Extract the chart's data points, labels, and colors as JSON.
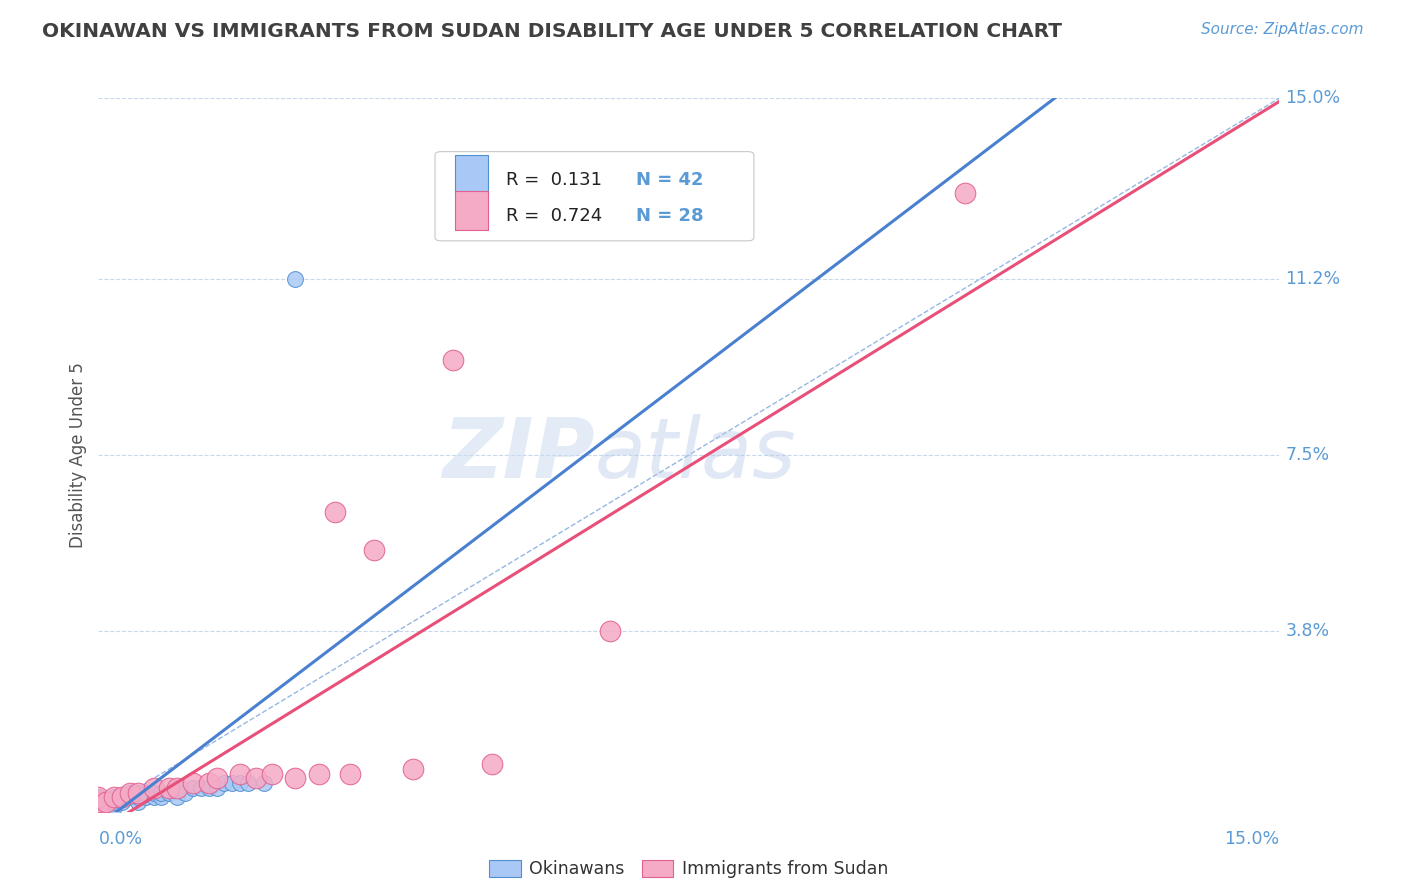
{
  "title": "OKINAWAN VS IMMIGRANTS FROM SUDAN DISABILITY AGE UNDER 5 CORRELATION CHART",
  "source": "Source: ZipAtlas.com",
  "ylabel": "Disability Age Under 5",
  "xmin": 0.0,
  "xmax": 0.15,
  "ymin": 0.0,
  "ymax": 0.15,
  "ytick_vals": [
    0.038,
    0.075,
    0.112,
    0.15
  ],
  "ytick_labels": [
    "3.8%",
    "7.5%",
    "11.2%",
    "15.0%"
  ],
  "legend_r1": "R =  0.131",
  "legend_n1": "N = 42",
  "legend_r2": "R =  0.724",
  "legend_n2": "N = 28",
  "color_okinawan_fill": "#aac8f5",
  "color_okinawan_edge": "#5090d0",
  "color_sudan_fill": "#f5aac5",
  "color_sudan_edge": "#e06090",
  "color_line_okinawan": "#4a80d0",
  "color_line_sudan": "#e8507a",
  "color_diag": "#8ab0e0",
  "color_title": "#404040",
  "color_axis_labels": "#5b9bd5",
  "color_grid": "#c8d8ec",
  "background_color": "#ffffff",
  "okinawan_x": [
    0.0,
    0.0,
    0.0,
    0.0,
    0.0,
    0.0,
    0.0,
    0.0,
    0.0,
    0.0,
    0.001,
    0.001,
    0.002,
    0.002,
    0.002,
    0.003,
    0.003,
    0.004,
    0.004,
    0.005,
    0.005,
    0.005,
    0.006,
    0.006,
    0.007,
    0.007,
    0.008,
    0.008,
    0.009,
    0.01,
    0.01,
    0.011,
    0.012,
    0.013,
    0.014,
    0.015,
    0.016,
    0.017,
    0.018,
    0.019,
    0.021,
    0.025
  ],
  "okinawan_y": [
    0.0,
    0.0,
    0.0,
    0.0,
    0.001,
    0.001,
    0.002,
    0.002,
    0.003,
    0.003,
    0.001,
    0.002,
    0.001,
    0.002,
    0.003,
    0.002,
    0.003,
    0.003,
    0.004,
    0.002,
    0.003,
    0.004,
    0.003,
    0.004,
    0.003,
    0.004,
    0.003,
    0.004,
    0.004,
    0.003,
    0.005,
    0.004,
    0.005,
    0.005,
    0.005,
    0.005,
    0.006,
    0.006,
    0.006,
    0.006,
    0.006,
    0.112
  ],
  "sudan_x": [
    0.0,
    0.0,
    0.0,
    0.0,
    0.001,
    0.002,
    0.003,
    0.004,
    0.005,
    0.007,
    0.009,
    0.01,
    0.012,
    0.014,
    0.015,
    0.018,
    0.02,
    0.022,
    0.025,
    0.028,
    0.03,
    0.032,
    0.035,
    0.04,
    0.045,
    0.05,
    0.065,
    0.11
  ],
  "sudan_y": [
    0.0,
    0.001,
    0.002,
    0.003,
    0.002,
    0.003,
    0.003,
    0.004,
    0.004,
    0.005,
    0.005,
    0.005,
    0.006,
    0.006,
    0.007,
    0.008,
    0.007,
    0.008,
    0.007,
    0.008,
    0.063,
    0.008,
    0.055,
    0.009,
    0.095,
    0.01,
    0.038,
    0.13
  ],
  "watermark_zip": "ZIP",
  "watermark_atlas": "atlas"
}
